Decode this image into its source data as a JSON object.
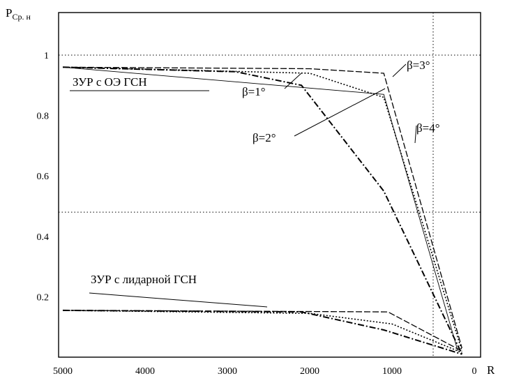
{
  "chart_data": {
    "type": "line",
    "ylabel_main": "P",
    "ylabel_sub": "Ср. н",
    "xlabel": "R",
    "xlim": [
      5000,
      0
    ],
    "ylim": [
      0,
      1.07
    ],
    "x_ticks": [
      5000,
      4000,
      3000,
      2000,
      1000,
      0
    ],
    "x_tick_labels": [
      "5000",
      "4000",
      "3000",
      "2000",
      "1000",
      "0"
    ],
    "y_ticks": [
      0.2,
      0.4,
      0.6,
      0.8,
      1
    ],
    "y_tick_labels": [
      "0.2",
      "0.4",
      "0.6",
      "0.8",
      "1"
    ],
    "reference_lines": {
      "y": [
        1.0,
        0.48
      ],
      "x": [
        500
      ]
    },
    "series": [
      {
        "style": "dash",
        "points": [
          [
            5000,
            0.96
          ],
          [
            2000,
            0.955
          ],
          [
            1100,
            0.94
          ],
          [
            150,
            0.03
          ]
        ]
      },
      {
        "style": "dot",
        "points": [
          [
            5000,
            0.96
          ],
          [
            2000,
            0.94
          ],
          [
            1100,
            0.86
          ],
          [
            150,
            0.02
          ]
        ]
      },
      {
        "style": "thin",
        "points": [
          [
            5000,
            0.96
          ],
          [
            1100,
            0.87
          ],
          [
            200,
            0.02
          ]
        ]
      },
      {
        "style": "dashdot",
        "points": [
          [
            5000,
            0.96
          ],
          [
            2900,
            0.945
          ],
          [
            2100,
            0.9
          ],
          [
            1100,
            0.55
          ],
          [
            150,
            0.01
          ]
        ]
      },
      {
        "style": "dash",
        "points": [
          [
            5000,
            0.155
          ],
          [
            1050,
            0.15
          ],
          [
            150,
            0.02
          ]
        ]
      },
      {
        "style": "dot",
        "points": [
          [
            5000,
            0.155
          ],
          [
            2000,
            0.145
          ],
          [
            1000,
            0.11
          ],
          [
            150,
            0.015
          ]
        ]
      },
      {
        "style": "dashdot",
        "points": [
          [
            5000,
            0.155
          ],
          [
            2100,
            0.15
          ],
          [
            1100,
            0.09
          ],
          [
            150,
            0.01
          ]
        ]
      }
    ],
    "annotations": [
      {
        "text": "ЗУР с ОЭ ГСН",
        "at": [
          2850,
          0.95
        ]
      },
      {
        "text": "β=1°",
        "at": [
          2150,
          0.9
        ]
      },
      {
        "text": "β=2°",
        "at": [
          1150,
          0.86
        ]
      },
      {
        "text": "β=3°",
        "at": [
          1080,
          0.85
        ]
      },
      {
        "text": "β=4°",
        "at": [
          980,
          0.7
        ]
      },
      {
        "text": "ЗУР с лидарной ГСН",
        "at": [
          1400,
          0.15
        ]
      }
    ]
  }
}
